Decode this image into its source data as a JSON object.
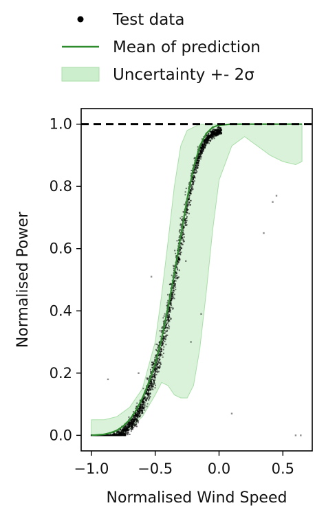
{
  "legend": {
    "items": [
      {
        "label": "Test data",
        "kind": "marker",
        "color": "#000000"
      },
      {
        "label": "Mean of prediction",
        "kind": "line",
        "color": "#2e8b2e"
      },
      {
        "label": "Uncertainty +- 2σ",
        "kind": "patch",
        "color": "#cdeecd"
      }
    ]
  },
  "chart_data": {
    "type": "line",
    "xlabel": "Normalised Wind Speed",
    "ylabel": "Normalised Power",
    "xlim": [
      -1.08,
      0.73
    ],
    "ylim": [
      -0.05,
      1.05
    ],
    "xticks": [
      -1.0,
      -0.5,
      0.0,
      0.5
    ],
    "xtick_labels": [
      "−1.0",
      "−0.5",
      "0.0",
      "0.5"
    ],
    "yticks": [
      0.0,
      0.2,
      0.4,
      0.6,
      0.8,
      1.0
    ],
    "ytick_labels": [
      "0.0",
      "0.2",
      "0.4",
      "0.6",
      "0.8",
      "1.0"
    ],
    "grid": false,
    "legend_position": "top, outside axes",
    "reference_line": {
      "y": 1.0,
      "style": "dashed",
      "color": "#000000"
    },
    "series": [
      {
        "name": "Mean of prediction",
        "color": "#2e8b2e",
        "x": [
          -1.0,
          -0.9,
          -0.85,
          -0.8,
          -0.75,
          -0.7,
          -0.65,
          -0.6,
          -0.55,
          -0.5,
          -0.45,
          -0.4,
          -0.35,
          -0.3,
          -0.25,
          -0.2,
          -0.15,
          -0.1,
          -0.05,
          0.0,
          0.1,
          0.2,
          0.3,
          0.4,
          0.5,
          0.65
        ],
        "y": [
          0.0,
          0.003,
          0.008,
          0.016,
          0.03,
          0.05,
          0.08,
          0.12,
          0.17,
          0.23,
          0.31,
          0.41,
          0.52,
          0.64,
          0.76,
          0.86,
          0.93,
          0.97,
          0.99,
          0.997,
          1.0,
          1.0,
          1.0,
          1.0,
          1.0,
          1.0
        ]
      },
      {
        "name": "Uncertainty +- 2σ",
        "color": "#cdeecd",
        "x": [
          -1.0,
          -0.9,
          -0.8,
          -0.7,
          -0.6,
          -0.5,
          -0.45,
          -0.4,
          -0.35,
          -0.3,
          -0.25,
          -0.2,
          -0.15,
          -0.1,
          -0.05,
          0.0,
          0.1,
          0.2,
          0.3,
          0.4,
          0.5,
          0.6,
          0.65
        ],
        "upper": [
          0.05,
          0.05,
          0.06,
          0.09,
          0.15,
          0.3,
          0.45,
          0.62,
          0.8,
          0.93,
          0.98,
          0.99,
          1.0,
          1.0,
          1.0,
          1.0,
          1.0,
          1.0,
          1.0,
          1.0,
          1.0,
          1.0,
          1.0
        ],
        "lower": [
          0.0,
          0.0,
          0.0,
          0.02,
          0.06,
          0.13,
          0.17,
          0.16,
          0.13,
          0.12,
          0.12,
          0.16,
          0.28,
          0.46,
          0.66,
          0.82,
          0.93,
          0.96,
          0.93,
          0.9,
          0.88,
          0.87,
          0.88
        ]
      }
    ],
    "scatter_sample": {
      "name": "Test data",
      "color": "#000000",
      "x": [
        -0.95,
        -0.9,
        -0.85,
        -0.8,
        -0.75,
        -0.7,
        -0.65,
        -0.6,
        -0.55,
        -0.5,
        -0.45,
        -0.4,
        -0.35,
        -0.3,
        -0.25,
        -0.2,
        -0.15,
        -0.1,
        -0.05,
        0.0,
        -0.87,
        -0.63,
        -0.56,
        -0.53,
        -0.26,
        -0.22,
        -0.14,
        0.1,
        0.35,
        0.45,
        0.42,
        0.6,
        0.64
      ],
      "y": [
        0.0,
        0.003,
        0.008,
        0.016,
        0.03,
        0.05,
        0.08,
        0.12,
        0.17,
        0.23,
        0.31,
        0.41,
        0.52,
        0.64,
        0.76,
        0.86,
        0.93,
        0.97,
        0.99,
        1.0,
        0.18,
        0.2,
        0.18,
        0.51,
        0.56,
        0.3,
        0.39,
        0.07,
        0.65,
        0.77,
        0.75,
        0.0,
        0.0
      ]
    }
  }
}
